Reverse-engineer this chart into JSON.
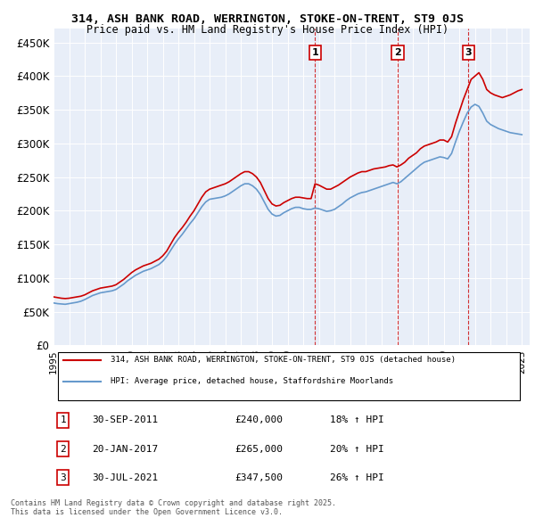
{
  "title_line1": "314, ASH BANK ROAD, WERRINGTON, STOKE-ON-TRENT, ST9 0JS",
  "title_line2": "Price paid vs. HM Land Registry's House Price Index (HPI)",
  "ylabel": "",
  "xlim_start": 1995.0,
  "xlim_end": 2025.5,
  "ylim": [
    0,
    470000
  ],
  "yticks": [
    0,
    50000,
    100000,
    150000,
    200000,
    250000,
    300000,
    350000,
    400000,
    450000
  ],
  "ytick_labels": [
    "£0",
    "£50K",
    "£100K",
    "£150K",
    "£200K",
    "£250K",
    "£300K",
    "£350K",
    "£400K",
    "£450K"
  ],
  "bg_color": "#e8eef8",
  "plot_bg_color": "#e8eef8",
  "red_color": "#cc0000",
  "blue_color": "#6699cc",
  "sale_dates": [
    2011.748,
    2017.055,
    2021.58
  ],
  "sale_prices": [
    240000,
    265000,
    347500
  ],
  "sale_labels": [
    "1",
    "2",
    "3"
  ],
  "legend_line1": "314, ASH BANK ROAD, WERRINGTON, STOKE-ON-TRENT, ST9 0JS (detached house)",
  "legend_line2": "HPI: Average price, detached house, Staffordshire Moorlands",
  "table_entries": [
    {
      "num": "1",
      "date": "30-SEP-2011",
      "price": "£240,000",
      "hpi": "18% ↑ HPI"
    },
    {
      "num": "2",
      "date": "20-JAN-2017",
      "price": "£265,000",
      "hpi": "20% ↑ HPI"
    },
    {
      "num": "3",
      "date": "30-JUL-2021",
      "price": "£347,500",
      "hpi": "26% ↑ HPI"
    }
  ],
  "footnote": "Contains HM Land Registry data © Crown copyright and database right 2025.\nThis data is licensed under the Open Government Licence v3.0.",
  "red_hpi_data": {
    "years": [
      1995.0,
      1995.25,
      1995.5,
      1995.75,
      1996.0,
      1996.25,
      1996.5,
      1996.75,
      1997.0,
      1997.25,
      1997.5,
      1997.75,
      1998.0,
      1998.25,
      1998.5,
      1998.75,
      1999.0,
      1999.25,
      1999.5,
      1999.75,
      2000.0,
      2000.25,
      2000.5,
      2000.75,
      2001.0,
      2001.25,
      2001.5,
      2001.75,
      2002.0,
      2002.25,
      2002.5,
      2002.75,
      2003.0,
      2003.25,
      2003.5,
      2003.75,
      2004.0,
      2004.25,
      2004.5,
      2004.75,
      2005.0,
      2005.25,
      2005.5,
      2005.75,
      2006.0,
      2006.25,
      2006.5,
      2006.75,
      2007.0,
      2007.25,
      2007.5,
      2007.75,
      2008.0,
      2008.25,
      2008.5,
      2008.75,
      2009.0,
      2009.25,
      2009.5,
      2009.75,
      2010.0,
      2010.25,
      2010.5,
      2010.75,
      2011.0,
      2011.25,
      2011.5,
      2011.75,
      2012.0,
      2012.25,
      2012.5,
      2012.75,
      2013.0,
      2013.25,
      2013.5,
      2013.75,
      2014.0,
      2014.25,
      2014.5,
      2014.75,
      2015.0,
      2015.25,
      2015.5,
      2015.75,
      2016.0,
      2016.25,
      2016.5,
      2016.75,
      2017.0,
      2017.25,
      2017.5,
      2017.75,
      2018.0,
      2018.25,
      2018.5,
      2018.75,
      2019.0,
      2019.25,
      2019.5,
      2019.75,
      2020.0,
      2020.25,
      2020.5,
      2020.75,
      2021.0,
      2021.25,
      2021.5,
      2021.75,
      2022.0,
      2022.25,
      2022.5,
      2022.75,
      2023.0,
      2023.25,
      2023.5,
      2023.75,
      2024.0,
      2024.25,
      2024.5,
      2024.75,
      2025.0
    ],
    "values": [
      72000,
      71000,
      70000,
      69500,
      70000,
      71000,
      72000,
      73000,
      75000,
      78000,
      81000,
      83000,
      85000,
      86000,
      87000,
      88000,
      90000,
      94000,
      98000,
      103000,
      108000,
      112000,
      115000,
      118000,
      120000,
      122000,
      125000,
      128000,
      133000,
      140000,
      150000,
      160000,
      168000,
      175000,
      183000,
      192000,
      200000,
      210000,
      220000,
      228000,
      232000,
      234000,
      236000,
      238000,
      240000,
      243000,
      247000,
      251000,
      255000,
      258000,
      258000,
      255000,
      250000,
      242000,
      230000,
      218000,
      210000,
      207000,
      208000,
      212000,
      215000,
      218000,
      220000,
      220000,
      219000,
      218000,
      218000,
      240000,
      238000,
      235000,
      232000,
      232000,
      235000,
      238000,
      242000,
      246000,
      250000,
      253000,
      256000,
      258000,
      258000,
      260000,
      262000,
      263000,
      264000,
      265000,
      267000,
      268000,
      265000,
      268000,
      272000,
      278000,
      282000,
      286000,
      292000,
      296000,
      298000,
      300000,
      302000,
      305000,
      305000,
      302000,
      310000,
      330000,
      347500,
      365000,
      380000,
      395000,
      400000,
      405000,
      395000,
      380000,
      375000,
      372000,
      370000,
      368000,
      370000,
      372000,
      375000,
      378000,
      380000
    ]
  },
  "blue_hpi_data": {
    "years": [
      1995.0,
      1995.25,
      1995.5,
      1995.75,
      1996.0,
      1996.25,
      1996.5,
      1996.75,
      1997.0,
      1997.25,
      1997.5,
      1997.75,
      1998.0,
      1998.25,
      1998.5,
      1998.75,
      1999.0,
      1999.25,
      1999.5,
      1999.75,
      2000.0,
      2000.25,
      2000.5,
      2000.75,
      2001.0,
      2001.25,
      2001.5,
      2001.75,
      2002.0,
      2002.25,
      2002.5,
      2002.75,
      2003.0,
      2003.25,
      2003.5,
      2003.75,
      2004.0,
      2004.25,
      2004.5,
      2004.75,
      2005.0,
      2005.25,
      2005.5,
      2005.75,
      2006.0,
      2006.25,
      2006.5,
      2006.75,
      2007.0,
      2007.25,
      2007.5,
      2007.75,
      2008.0,
      2008.25,
      2008.5,
      2008.75,
      2009.0,
      2009.25,
      2009.5,
      2009.75,
      2010.0,
      2010.25,
      2010.5,
      2010.75,
      2011.0,
      2011.25,
      2011.5,
      2011.75,
      2012.0,
      2012.25,
      2012.5,
      2012.75,
      2013.0,
      2013.25,
      2013.5,
      2013.75,
      2014.0,
      2014.25,
      2014.5,
      2014.75,
      2015.0,
      2015.25,
      2015.5,
      2015.75,
      2016.0,
      2016.25,
      2016.5,
      2016.75,
      2017.0,
      2017.25,
      2017.5,
      2017.75,
      2018.0,
      2018.25,
      2018.5,
      2018.75,
      2019.0,
      2019.25,
      2019.5,
      2019.75,
      2020.0,
      2020.25,
      2020.5,
      2020.75,
      2021.0,
      2021.25,
      2021.5,
      2021.75,
      2022.0,
      2022.25,
      2022.5,
      2022.75,
      2023.0,
      2023.25,
      2023.5,
      2023.75,
      2024.0,
      2024.25,
      2024.5,
      2024.75,
      2025.0
    ],
    "values": [
      63000,
      62000,
      61500,
      61000,
      62000,
      63000,
      64000,
      65500,
      68000,
      71000,
      74000,
      76000,
      78000,
      79000,
      80000,
      81000,
      83000,
      87000,
      91000,
      96000,
      100000,
      104000,
      107000,
      110000,
      112000,
      114000,
      117000,
      120000,
      125000,
      132000,
      141000,
      150000,
      158000,
      165000,
      173000,
      181000,
      188000,
      197000,
      206000,
      213000,
      217000,
      218000,
      219000,
      220000,
      222000,
      225000,
      229000,
      233000,
      237000,
      240000,
      240000,
      237000,
      232000,
      224000,
      213000,
      202000,
      195000,
      192000,
      193000,
      197000,
      200000,
      203000,
      205000,
      205000,
      203000,
      202000,
      202000,
      204000,
      203000,
      201000,
      199000,
      200000,
      202000,
      206000,
      210000,
      215000,
      219000,
      222000,
      225000,
      227000,
      228000,
      230000,
      232000,
      234000,
      236000,
      238000,
      240000,
      242000,
      240000,
      243000,
      248000,
      253000,
      258000,
      263000,
      268000,
      272000,
      274000,
      276000,
      278000,
      280000,
      279000,
      277000,
      285000,
      302000,
      318000,
      332000,
      345000,
      354000,
      358000,
      355000,
      345000,
      333000,
      328000,
      325000,
      322000,
      320000,
      318000,
      316000,
      315000,
      314000,
      313000
    ]
  }
}
